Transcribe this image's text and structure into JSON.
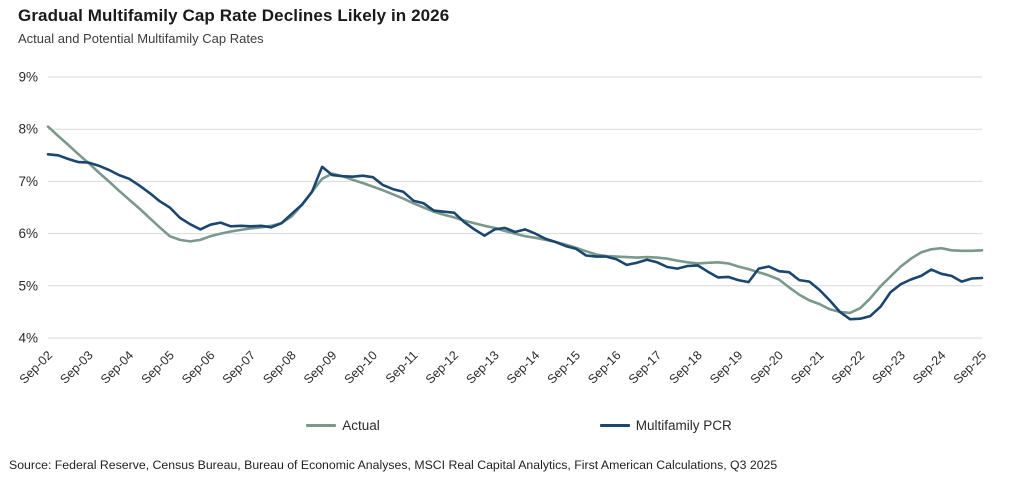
{
  "title": "Gradual Multifamily Cap Rate Declines Likely in 2026",
  "subtitle": "Actual and Potential Multifamily Cap Rates",
  "source": "Source: Federal Reserve, Census Bureau, Bureau of Economic Analyses, MSCI Real Capital Analytics, First American Calculations, Q3 2025",
  "colors": {
    "actual_line": "#7A998B",
    "pcr_line": "#1A4670",
    "gridline": "#d9d9d9",
    "axis_text": "#2b2b2b"
  },
  "chart_data": {
    "type": "line",
    "title": "Gradual Multifamily Cap Rate Declines Likely in 2026",
    "subtitle": "Actual and Potential Multifamily Cap Rates",
    "ylim": [
      4,
      9
    ],
    "y_ticks": [
      "9%",
      "8%",
      "7%",
      "6%",
      "5%",
      "4%"
    ],
    "grid": "horizontal",
    "legend_position": "bottom",
    "frequency": "quarterly",
    "x_start": "Sep-02",
    "x_end": "Sep-25",
    "x_tick_labels": [
      "Sep-02",
      "Sep-03",
      "Sep-04",
      "Sep-05",
      "Sep-06",
      "Sep-07",
      "Sep-08",
      "Sep-09",
      "Sep-10",
      "Sep-11",
      "Sep-12",
      "Sep-13",
      "Sep-14",
      "Sep-15",
      "Sep-16",
      "Sep-17",
      "Sep-18",
      "Sep-19",
      "Sep-20",
      "Sep-21",
      "Sep-22",
      "Sep-23",
      "Sep-24",
      "Sep-25"
    ],
    "series": [
      {
        "name": "Actual",
        "color": "#7A998B",
        "values": [
          8.05,
          7.87,
          7.7,
          7.52,
          7.35,
          7.17,
          7.0,
          6.82,
          6.65,
          6.48,
          6.3,
          6.12,
          5.95,
          5.88,
          5.85,
          5.88,
          5.95,
          6.0,
          6.04,
          6.07,
          6.1,
          6.12,
          6.15,
          6.2,
          6.33,
          6.55,
          6.8,
          7.05,
          7.15,
          7.1,
          7.03,
          6.97,
          6.9,
          6.83,
          6.75,
          6.67,
          6.58,
          6.5,
          6.42,
          6.36,
          6.31,
          6.25,
          6.2,
          6.15,
          6.11,
          6.05,
          6.0,
          5.95,
          5.92,
          5.88,
          5.84,
          5.79,
          5.73,
          5.66,
          5.6,
          5.57,
          5.56,
          5.55,
          5.54,
          5.55,
          5.54,
          5.52,
          5.48,
          5.45,
          5.43,
          5.44,
          5.45,
          5.43,
          5.37,
          5.32,
          5.26,
          5.2,
          5.12,
          4.97,
          4.83,
          4.72,
          4.65,
          4.55,
          4.5,
          4.48,
          4.57,
          4.76,
          4.99,
          5.18,
          5.37,
          5.52,
          5.64,
          5.7,
          5.72,
          5.68,
          5.67,
          5.67,
          5.68
        ]
      },
      {
        "name": "Multifamily PCR",
        "color": "#1A4670",
        "values": [
          7.52,
          7.5,
          7.43,
          7.37,
          7.36,
          7.3,
          7.22,
          7.12,
          7.05,
          6.92,
          6.78,
          6.62,
          6.5,
          6.3,
          6.18,
          6.08,
          6.17,
          6.21,
          6.14,
          6.15,
          6.14,
          6.15,
          6.12,
          6.2,
          6.38,
          6.55,
          6.8,
          7.28,
          7.12,
          7.1,
          7.09,
          7.11,
          7.08,
          6.93,
          6.85,
          6.8,
          6.63,
          6.58,
          6.44,
          6.42,
          6.4,
          6.22,
          6.08,
          5.96,
          6.08,
          6.11,
          6.03,
          6.08,
          6.0,
          5.9,
          5.84,
          5.76,
          5.71,
          5.58,
          5.56,
          5.56,
          5.51,
          5.4,
          5.44,
          5.5,
          5.45,
          5.36,
          5.33,
          5.38,
          5.39,
          5.27,
          5.16,
          5.17,
          5.11,
          5.07,
          5.33,
          5.37,
          5.28,
          5.26,
          5.11,
          5.08,
          4.92,
          4.72,
          4.5,
          4.36,
          4.37,
          4.42,
          4.6,
          4.88,
          5.03,
          5.12,
          5.19,
          5.31,
          5.23,
          5.19,
          5.08,
          5.14,
          5.15
        ]
      }
    ]
  }
}
